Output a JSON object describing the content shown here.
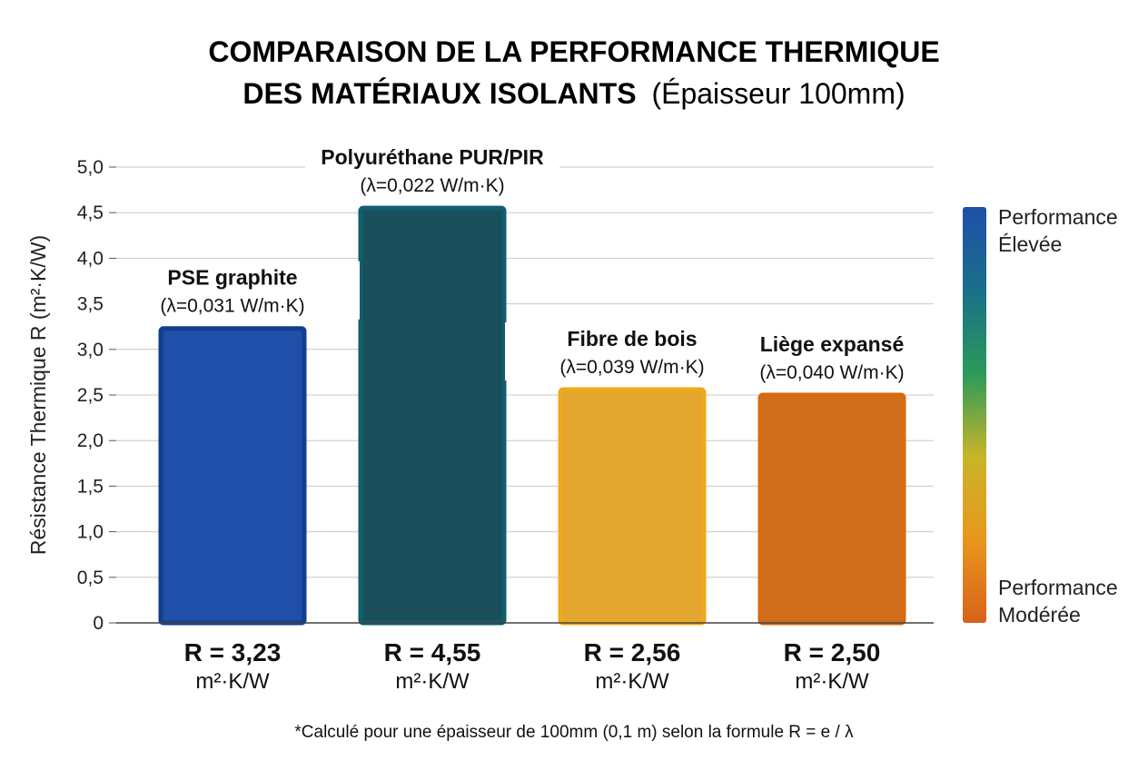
{
  "chart_data": {
    "type": "bar",
    "title_main": "COMPARAISON DE LA PERFORMANCE THERMIQUE",
    "title_line2_bold": "DES MATÉRIAUX ISOLANTS",
    "title_line2_normal": "(Épaisseur 100mm)",
    "ylabel": "Résistance Thermique R (m²·K/W)",
    "ylim": [
      0,
      5.0
    ],
    "yticks": [
      "0",
      "0,5",
      "1,0",
      "1,5",
      "2,0",
      "2,5",
      "3,0",
      "3,5",
      "4,0",
      "4,5",
      "5,0"
    ],
    "grid": true,
    "categories": [
      {
        "name": "PSE graphite",
        "lambda": "(λ=0,031 W/m·K)",
        "value": 3.23,
        "r_label": "R = 3,23",
        "unit": "m²·K/W",
        "color": "#1f4fa8",
        "edge": "#153d8f"
      },
      {
        "name": "Polyuréthane PUR/PIR",
        "lambda": "(λ=0,022 W/m·K)",
        "value": 4.55,
        "r_label": "R = 4,55",
        "unit": "m²·K/W",
        "color": "#1b4f5c",
        "edge": "#0f5f6f"
      },
      {
        "name": "Fibre de bois",
        "lambda": "(λ=0,039 W/m·K)",
        "value": 2.56,
        "r_label": "R = 2,56",
        "unit": "m²·K/W",
        "color": "#e3a62e",
        "edge": "#f0a81c"
      },
      {
        "name": "Liège expansé",
        "lambda": "(λ=0,040 W/m·K)",
        "value": 2.5,
        "r_label": "R = 2,50",
        "unit": "m²·K/W",
        "color": "#cf6e1c",
        "edge": "#d86a10"
      }
    ],
    "legend": {
      "top_line1": "Performance",
      "top_line2": "Élevée",
      "bottom_line1": "Performance",
      "bottom_line2": "Modérée",
      "gradient": [
        "#1f4fa8",
        "#1a6f8a",
        "#2a9a5a",
        "#c9b52a",
        "#e8961e",
        "#d8621a"
      ]
    },
    "footnote": "*Calculé pour une épaisseur de 100mm (0,1 m) selon la formule R = e / λ"
  }
}
